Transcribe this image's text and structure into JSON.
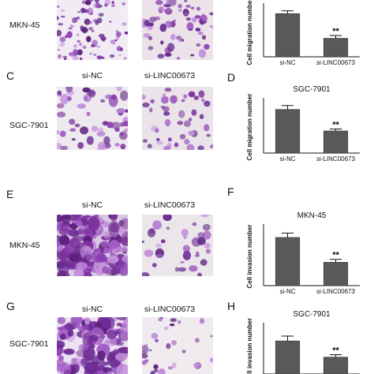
{
  "panels": [
    {
      "letter": "",
      "row": "MKN-45",
      "col1": "",
      "col2": ""
    },
    {
      "letter": "C",
      "row": "SGC-7901",
      "col1": "si-NC",
      "col2": "si-LINC00673"
    },
    {
      "letter": "E",
      "row": "MKN-45",
      "col1": "si-NC",
      "col2": "si-LINC00673"
    },
    {
      "letter": "G",
      "row": "SGC-7901",
      "col1": "si-NC",
      "col2": "si-LINC00673"
    }
  ],
  "images": [
    {
      "stain": "light-purple scattered migrated cells",
      "bg": "#f1ecf3"
    },
    {
      "stain": "purple migrated cells",
      "bg": "#ece3ea"
    },
    {
      "stain": "pale purple migrated cells",
      "bg": "#eee9ef"
    },
    {
      "stain": "purple migrated cells",
      "bg": "#eae3e9"
    },
    {
      "stain": "dense purple invaded cells",
      "bg": "#d8c9e3"
    },
    {
      "stain": "sparse purple invaded cells",
      "bg": "#eae6ea"
    },
    {
      "stain": "dense purple invaded cells",
      "bg": "#ede2f1"
    },
    {
      "stain": "sparse purple invaded cells",
      "bg": "#efebee"
    }
  ],
  "chart_data": [
    {
      "letter": "",
      "type": "bar",
      "title": "",
      "ylabel": "Cell migration number",
      "categories": [
        "si-NC",
        "si-LINC00673"
      ],
      "values": [
        77,
        33
      ],
      "errors": [
        5,
        5
      ],
      "significance": [
        "",
        "**"
      ],
      "ylim": [
        0,
        90
      ]
    },
    {
      "letter": "D",
      "type": "bar",
      "title": "SGC-7901",
      "ylabel": "Cell migration number",
      "categories": [
        "si-NC",
        "si-LINC00673"
      ],
      "values": [
        67,
        34
      ],
      "errors": [
        6,
        3
      ],
      "significance": [
        "",
        "**"
      ],
      "ylim": [
        0,
        80
      ]
    },
    {
      "letter": "F",
      "type": "bar",
      "title": "MKN-45",
      "ylabel": "Cell invasion number",
      "categories": [
        "si-NC",
        "si-LINC00673"
      ],
      "values": [
        66,
        32
      ],
      "errors": [
        6,
        4
      ],
      "significance": [
        "",
        "**"
      ],
      "ylim": [
        0,
        80
      ]
    },
    {
      "letter": "H",
      "type": "bar",
      "title": "SGC-7901",
      "ylabel": "Cell invasion number",
      "categories": [
        "si-NC",
        "si-LINC00673"
      ],
      "values": [
        55,
        28
      ],
      "errors": [
        8,
        4
      ],
      "significance": [
        "",
        "**"
      ],
      "ylim": [
        0,
        80
      ]
    }
  ]
}
